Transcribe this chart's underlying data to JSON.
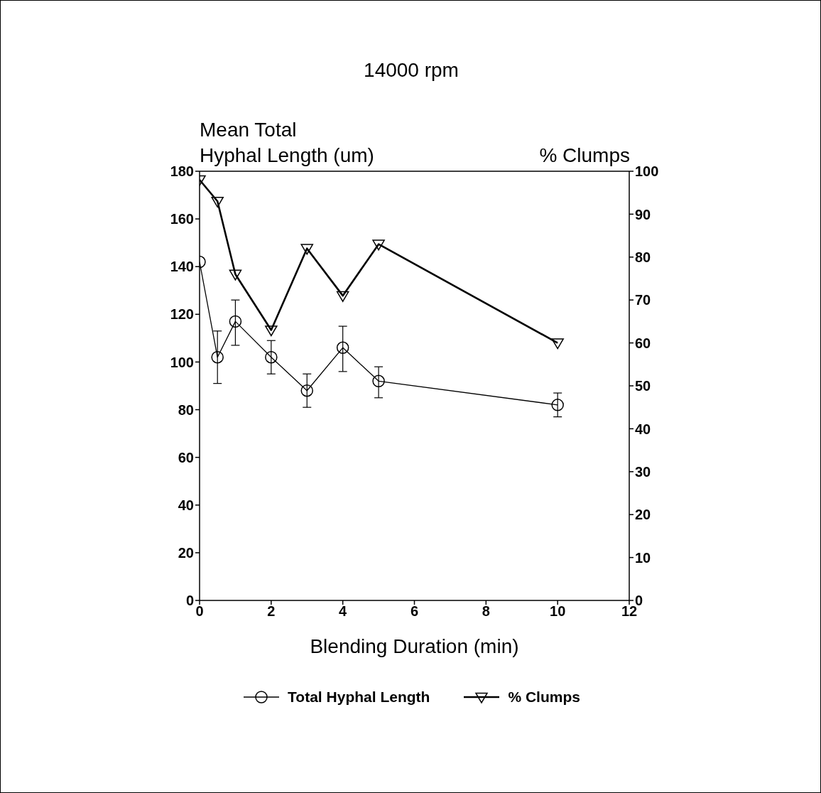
{
  "chart_data": {
    "type": "line",
    "title": "14000 rpm",
    "xlabel": "Blending Duration (min)",
    "ylabel": "Mean Total\nHyphal Length (um)",
    "y2label": "% Clumps",
    "x": [
      0,
      0.5,
      1,
      2,
      3,
      4,
      5,
      10
    ],
    "series": [
      {
        "name": "Total Hyphal Length",
        "color": "#000000",
        "marker": "circle",
        "values": [
          142,
          102,
          117,
          102,
          88,
          106,
          92,
          82
        ],
        "errors": [
          null,
          [
            91,
            113
          ],
          [
            107,
            126
          ],
          [
            95,
            109
          ],
          [
            81,
            95
          ],
          [
            96,
            115
          ],
          [
            85,
            98
          ],
          [
            77,
            87
          ]
        ]
      },
      {
        "name": "% Clumps",
        "color": "#000000",
        "marker": "triangle",
        "axis": "y2",
        "values": [
          98,
          93,
          76,
          63,
          82,
          71,
          83,
          60
        ]
      }
    ],
    "xlim": [
      0,
      12
    ],
    "xticks": [
      0,
      2,
      4,
      6,
      8,
      10,
      12
    ],
    "ylim": [
      0,
      180
    ],
    "yticks": [
      0,
      20,
      40,
      60,
      80,
      100,
      120,
      140,
      160,
      180
    ],
    "y2lim": [
      0,
      100
    ],
    "y2ticks": [
      0,
      10,
      20,
      30,
      40,
      50,
      60,
      70,
      80,
      90,
      100
    ],
    "grid": false,
    "legend": "bottom",
    "line_style": "solid"
  }
}
